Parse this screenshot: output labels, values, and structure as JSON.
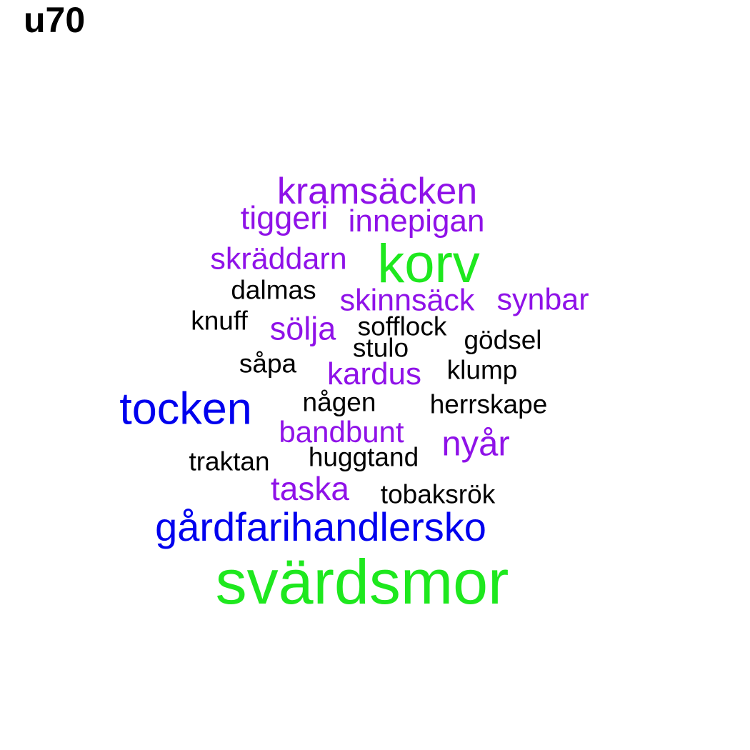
{
  "title": "u70",
  "colors": {
    "green": "#1ee81e",
    "blue": "#0000ee",
    "purple": "#8f12e8",
    "black": "#000000"
  },
  "words": [
    {
      "text": "svärdsmor",
      "color": "green"
    },
    {
      "text": "korv",
      "color": "green"
    },
    {
      "text": "gårdfarihandlersko",
      "color": "blue"
    },
    {
      "text": "tocken",
      "color": "blue"
    },
    {
      "text": "kramsäcken",
      "color": "purple"
    },
    {
      "text": "tiggeri",
      "color": "purple"
    },
    {
      "text": "innepigan",
      "color": "purple"
    },
    {
      "text": "skräddarn",
      "color": "purple"
    },
    {
      "text": "skinnsäck",
      "color": "purple"
    },
    {
      "text": "synbar",
      "color": "purple"
    },
    {
      "text": "sölja",
      "color": "purple"
    },
    {
      "text": "kardus",
      "color": "purple"
    },
    {
      "text": "bandbunt",
      "color": "purple"
    },
    {
      "text": "nyår",
      "color": "purple"
    },
    {
      "text": "taska",
      "color": "purple"
    },
    {
      "text": "dalmas",
      "color": "black"
    },
    {
      "text": "knuff",
      "color": "black"
    },
    {
      "text": "sofflock",
      "color": "black"
    },
    {
      "text": "stulo",
      "color": "black"
    },
    {
      "text": "gödsel",
      "color": "black"
    },
    {
      "text": "såpa",
      "color": "black"
    },
    {
      "text": "klump",
      "color": "black"
    },
    {
      "text": "någen",
      "color": "black"
    },
    {
      "text": "herrskape",
      "color": "black"
    },
    {
      "text": "traktan",
      "color": "black"
    },
    {
      "text": "huggtand",
      "color": "black"
    },
    {
      "text": "tobaksrök",
      "color": "black"
    }
  ]
}
